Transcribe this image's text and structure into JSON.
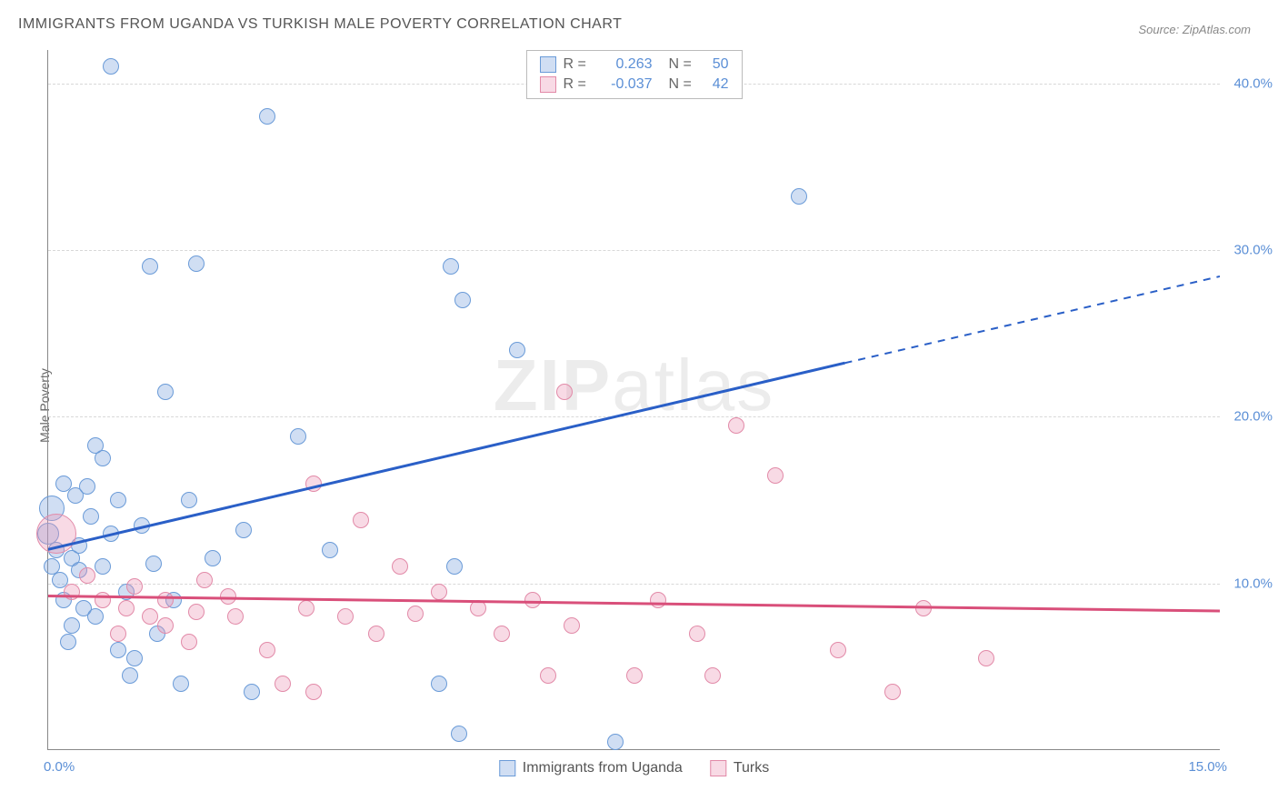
{
  "title": "IMMIGRANTS FROM UGANDA VS TURKISH MALE POVERTY CORRELATION CHART",
  "source_label": "Source: ZipAtlas.com",
  "ylabel": "Male Poverty",
  "watermark_bold": "ZIP",
  "watermark_rest": "atlas",
  "chart": {
    "type": "scatter",
    "xlim": [
      0,
      15
    ],
    "ylim": [
      0,
      42
    ],
    "x_ticks": [
      {
        "v": 0,
        "label": "0.0%",
        "pos": "left"
      },
      {
        "v": 15,
        "label": "15.0%",
        "pos": "right"
      }
    ],
    "y_ticks": [
      {
        "v": 10,
        "label": "10.0%"
      },
      {
        "v": 20,
        "label": "20.0%"
      },
      {
        "v": 30,
        "label": "30.0%"
      },
      {
        "v": 40,
        "label": "40.0%"
      }
    ],
    "grid_color": "#d8d8d8",
    "background_color": "#ffffff",
    "axis_color": "#888888",
    "series": [
      {
        "name": "Immigrants from Uganda",
        "fill": "rgba(120,160,220,0.35)",
        "stroke": "#6a9bd8",
        "marker_r": 9,
        "R": "0.263",
        "N": "50",
        "trend": {
          "color": "#2a5fc7",
          "width": 3,
          "x1": 0,
          "y1": 12.0,
          "x2": 10.2,
          "y2": 23.2,
          "x2d": 15,
          "y2d": 28.4
        },
        "points": [
          {
            "x": 0.8,
            "y": 41.0
          },
          {
            "x": 2.8,
            "y": 38.0
          },
          {
            "x": 1.3,
            "y": 29.0
          },
          {
            "x": 1.9,
            "y": 29.2
          },
          {
            "x": 5.15,
            "y": 29.0
          },
          {
            "x": 5.3,
            "y": 27.0
          },
          {
            "x": 6.0,
            "y": 24.0
          },
          {
            "x": 9.6,
            "y": 33.2
          },
          {
            "x": 1.5,
            "y": 21.5
          },
          {
            "x": 3.2,
            "y": 18.8
          },
          {
            "x": 0.7,
            "y": 17.5
          },
          {
            "x": 0.6,
            "y": 18.3
          },
          {
            "x": 0.2,
            "y": 16.0
          },
          {
            "x": 0.35,
            "y": 15.3
          },
          {
            "x": 0.5,
            "y": 15.8
          },
          {
            "x": 0.9,
            "y": 15.0
          },
          {
            "x": 1.8,
            "y": 15.0
          },
          {
            "x": 1.2,
            "y": 13.5
          },
          {
            "x": 2.5,
            "y": 13.2
          },
          {
            "x": 3.6,
            "y": 12.0
          },
          {
            "x": 0.1,
            "y": 12.0
          },
          {
            "x": 0.3,
            "y": 11.5
          },
          {
            "x": 0.4,
            "y": 12.3
          },
          {
            "x": 0.7,
            "y": 11.0
          },
          {
            "x": 0.2,
            "y": 9.0
          },
          {
            "x": 0.45,
            "y": 8.5
          },
          {
            "x": 0.3,
            "y": 7.5
          },
          {
            "x": 0.6,
            "y": 8.0
          },
          {
            "x": 0.9,
            "y": 6.0
          },
          {
            "x": 1.1,
            "y": 5.5
          },
          {
            "x": 1.4,
            "y": 7.0
          },
          {
            "x": 1.05,
            "y": 4.5
          },
          {
            "x": 1.7,
            "y": 4.0
          },
          {
            "x": 2.6,
            "y": 3.5
          },
          {
            "x": 5.0,
            "y": 4.0
          },
          {
            "x": 5.2,
            "y": 11.0
          },
          {
            "x": 5.25,
            "y": 1.0
          },
          {
            "x": 7.25,
            "y": 0.5
          },
          {
            "x": 0.05,
            "y": 14.5,
            "r": 14
          },
          {
            "x": 0.0,
            "y": 13.0,
            "r": 12
          },
          {
            "x": 1.0,
            "y": 9.5
          },
          {
            "x": 0.15,
            "y": 10.2
          },
          {
            "x": 0.55,
            "y": 14.0
          },
          {
            "x": 2.1,
            "y": 11.5
          },
          {
            "x": 0.8,
            "y": 13.0
          },
          {
            "x": 1.6,
            "y": 9.0
          },
          {
            "x": 0.25,
            "y": 6.5
          },
          {
            "x": 0.4,
            "y": 10.8
          },
          {
            "x": 0.05,
            "y": 11.0
          },
          {
            "x": 1.35,
            "y": 11.2
          }
        ]
      },
      {
        "name": "Turks",
        "fill": "rgba(235,150,180,0.35)",
        "stroke": "#e28aa8",
        "marker_r": 9,
        "R": "-0.037",
        "N": "42",
        "trend": {
          "color": "#d94f7a",
          "width": 3,
          "x1": 0,
          "y1": 9.2,
          "x2": 15,
          "y2": 8.3
        },
        "points": [
          {
            "x": 0.1,
            "y": 13.0,
            "r": 22
          },
          {
            "x": 0.3,
            "y": 9.5
          },
          {
            "x": 0.7,
            "y": 9.0
          },
          {
            "x": 1.0,
            "y": 8.5
          },
          {
            "x": 1.1,
            "y": 9.8
          },
          {
            "x": 1.3,
            "y": 8.0
          },
          {
            "x": 1.5,
            "y": 9.0
          },
          {
            "x": 1.5,
            "y": 7.5
          },
          {
            "x": 1.9,
            "y": 8.3
          },
          {
            "x": 1.8,
            "y": 6.5
          },
          {
            "x": 2.4,
            "y": 8.0
          },
          {
            "x": 2.8,
            "y": 6.0
          },
          {
            "x": 2.3,
            "y": 9.2
          },
          {
            "x": 3.0,
            "y": 4.0
          },
          {
            "x": 3.3,
            "y": 8.5
          },
          {
            "x": 3.4,
            "y": 3.5
          },
          {
            "x": 3.4,
            "y": 16.0
          },
          {
            "x": 4.0,
            "y": 13.8
          },
          {
            "x": 3.8,
            "y": 8.0
          },
          {
            "x": 4.2,
            "y": 7.0
          },
          {
            "x": 4.5,
            "y": 11.0
          },
          {
            "x": 4.7,
            "y": 8.2
          },
          {
            "x": 5.0,
            "y": 9.5
          },
          {
            "x": 5.5,
            "y": 8.5
          },
          {
            "x": 5.8,
            "y": 7.0
          },
          {
            "x": 6.2,
            "y": 9.0
          },
          {
            "x": 6.4,
            "y": 4.5
          },
          {
            "x": 6.6,
            "y": 21.5
          },
          {
            "x": 6.7,
            "y": 7.5
          },
          {
            "x": 7.5,
            "y": 4.5
          },
          {
            "x": 7.8,
            "y": 9.0
          },
          {
            "x": 8.3,
            "y": 7.0
          },
          {
            "x": 8.5,
            "y": 4.5
          },
          {
            "x": 8.8,
            "y": 19.5
          },
          {
            "x": 9.3,
            "y": 16.5
          },
          {
            "x": 10.1,
            "y": 6.0
          },
          {
            "x": 10.8,
            "y": 3.5
          },
          {
            "x": 12.0,
            "y": 5.5
          },
          {
            "x": 11.2,
            "y": 8.5
          },
          {
            "x": 0.5,
            "y": 10.5
          },
          {
            "x": 2.0,
            "y": 10.2
          },
          {
            "x": 0.9,
            "y": 7.0
          }
        ]
      }
    ]
  },
  "legend_top": {
    "r_label": "R =",
    "n_label": "N ="
  },
  "legend_bottom_labels": [
    "Immigrants from Uganda",
    "Turks"
  ],
  "colors": {
    "text_value_blue": "#5b8fd6"
  }
}
